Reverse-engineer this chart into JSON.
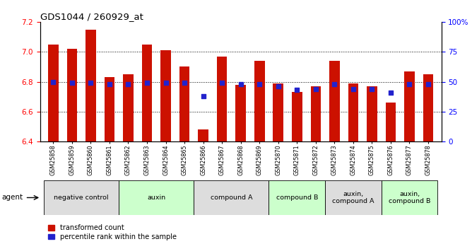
{
  "title": "GDS1044 / 260929_at",
  "samples": [
    "GSM25858",
    "GSM25859",
    "GSM25860",
    "GSM25861",
    "GSM25862",
    "GSM25863",
    "GSM25864",
    "GSM25865",
    "GSM25866",
    "GSM25867",
    "GSM25868",
    "GSM25869",
    "GSM25870",
    "GSM25871",
    "GSM25872",
    "GSM25873",
    "GSM25874",
    "GSM25875",
    "GSM25876",
    "GSM25877",
    "GSM25878"
  ],
  "red_values": [
    7.05,
    7.02,
    7.15,
    6.83,
    6.85,
    7.05,
    7.01,
    6.9,
    6.48,
    6.97,
    6.78,
    6.94,
    6.79,
    6.73,
    6.77,
    6.94,
    6.79,
    6.77,
    6.66,
    6.87,
    6.85
  ],
  "blue_values": [
    50,
    49,
    49,
    48,
    48,
    49,
    49,
    49,
    38,
    49,
    48,
    48,
    46,
    43,
    44,
    48,
    44,
    44,
    41,
    48,
    48
  ],
  "ylim_left": [
    6.4,
    7.2
  ],
  "ylim_right": [
    0,
    100
  ],
  "yticks_left": [
    6.4,
    6.6,
    6.8,
    7.0,
    7.2
  ],
  "yticks_right": [
    0,
    25,
    50,
    75,
    100
  ],
  "ytick_labels_right": [
    "0",
    "25",
    "50",
    "75",
    "100%"
  ],
  "hlines": [
    6.6,
    6.8,
    7.0
  ],
  "groups": [
    {
      "label": "negative control",
      "start": 0,
      "end": 3,
      "color": "#dddddd"
    },
    {
      "label": "auxin",
      "start": 4,
      "end": 7,
      "color": "#ccffcc"
    },
    {
      "label": "compound A",
      "start": 8,
      "end": 11,
      "color": "#dddddd"
    },
    {
      "label": "compound B",
      "start": 12,
      "end": 14,
      "color": "#ccffcc"
    },
    {
      "label": "auxin,\ncompound A",
      "start": 15,
      "end": 17,
      "color": "#dddddd"
    },
    {
      "label": "auxin,\ncompound B",
      "start": 18,
      "end": 20,
      "color": "#ccffcc"
    }
  ],
  "bar_color": "#cc1100",
  "blue_color": "#2222cc",
  "bar_width": 0.55,
  "legend_labels": [
    "transformed count",
    "percentile rank within the sample"
  ],
  "legend_colors": [
    "#cc1100",
    "#2222cc"
  ],
  "agent_label": "agent",
  "n_samples": 21
}
